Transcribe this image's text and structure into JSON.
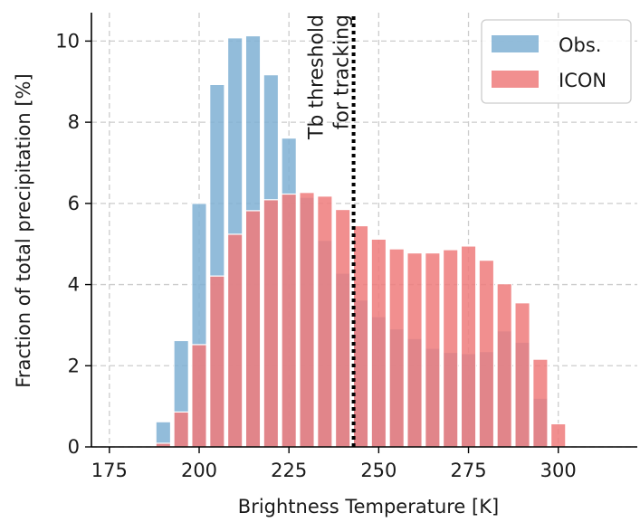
{
  "chart_data": {
    "type": "bar",
    "xlabel": "Brightness Temperature [K]",
    "ylabel": "Fraction of total precipitation [%]",
    "xlim": [
      170,
      322
    ],
    "ylim": [
      0,
      10.7
    ],
    "xticks": [
      175,
      200,
      225,
      250,
      275,
      300
    ],
    "yticks": [
      0,
      2,
      4,
      6,
      8,
      10
    ],
    "grid": true,
    "legend_position": "top-right",
    "bin_width": 5,
    "x": [
      190,
      195,
      200,
      205,
      210,
      215,
      220,
      225,
      230,
      235,
      240,
      245,
      250,
      255,
      260,
      265,
      270,
      275,
      280,
      285,
      290,
      295,
      300
    ],
    "series": [
      {
        "name": "Obs.",
        "color": "#7fb0d4",
        "values": [
          0.62,
          2.62,
          6.0,
          8.93,
          10.08,
          10.13,
          9.17,
          7.61,
          6.15,
          5.09,
          4.28,
          3.62,
          3.21,
          2.91,
          2.67,
          2.43,
          2.33,
          2.3,
          2.35,
          2.86,
          2.58,
          1.2,
          0.02
        ]
      },
      {
        "name": "ICON",
        "color": "#ef7b7b",
        "values": [
          0.09,
          0.86,
          2.52,
          4.21,
          5.24,
          5.82,
          6.09,
          6.23,
          6.27,
          6.18,
          5.85,
          5.45,
          5.12,
          4.88,
          4.78,
          4.78,
          4.86,
          4.95,
          4.6,
          4.02,
          3.55,
          2.16,
          0.57
        ]
      }
    ],
    "annotations": [
      {
        "text_lines": [
          "Tb threshold",
          "for tracking"
        ],
        "x": 243,
        "style": "dotted-vertical-line"
      }
    ]
  }
}
